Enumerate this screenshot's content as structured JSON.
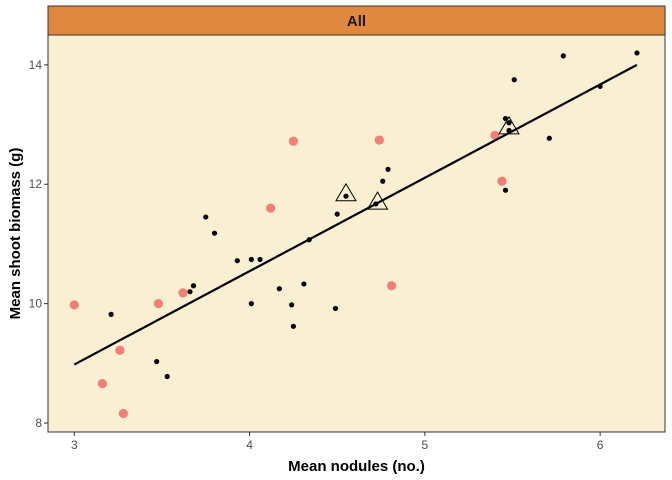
{
  "chart_data": {
    "type": "scatter",
    "facet_label": "All",
    "xlabel": "Mean nodules (no.)",
    "ylabel": "Mean shoot biomass (g)",
    "xlim": [
      2.85,
      6.37
    ],
    "ylim": [
      7.85,
      14.5
    ],
    "x_ticks": [
      3,
      4,
      5,
      6
    ],
    "y_ticks": [
      8,
      10,
      12,
      14
    ],
    "grid": false,
    "colors": {
      "panel_background": "#faeed3",
      "strip_background": "#e0883f",
      "highlight_points": "#f07f76",
      "points": "#000000",
      "fit_line": "#000000",
      "panel_border": "#333333"
    },
    "series": [
      {
        "style": "small-black-dot",
        "points": [
          [
            3.21,
            9.82
          ],
          [
            3.47,
            9.03
          ],
          [
            3.53,
            8.78
          ],
          [
            3.66,
            10.2
          ],
          [
            3.68,
            10.3
          ],
          [
            3.75,
            11.45
          ],
          [
            3.8,
            11.18
          ],
          [
            3.93,
            10.72
          ],
          [
            4.01,
            10.74
          ],
          [
            4.01,
            10.0
          ],
          [
            4.06,
            10.74
          ],
          [
            4.17,
            10.25
          ],
          [
            4.24,
            9.98
          ],
          [
            4.25,
            9.62
          ],
          [
            4.31,
            10.33
          ],
          [
            4.34,
            11.07
          ],
          [
            4.49,
            9.92
          ],
          [
            4.5,
            11.5
          ],
          [
            4.55,
            11.8
          ],
          [
            4.72,
            11.67
          ],
          [
            4.76,
            12.05
          ],
          [
            4.79,
            12.25
          ],
          [
            5.46,
            13.1
          ],
          [
            5.46,
            11.9
          ],
          [
            5.48,
            13.03
          ],
          [
            5.48,
            12.9
          ],
          [
            5.51,
            13.75
          ],
          [
            5.71,
            12.77
          ],
          [
            5.79,
            14.15
          ],
          [
            6.0,
            13.64
          ],
          [
            6.21,
            14.2
          ]
        ]
      },
      {
        "style": "large-salmon-dot",
        "points": [
          [
            3.0,
            9.98
          ],
          [
            3.16,
            8.66
          ],
          [
            3.26,
            9.22
          ],
          [
            3.28,
            8.16
          ],
          [
            3.48,
            10.0
          ],
          [
            3.62,
            10.18
          ],
          [
            4.12,
            11.6
          ],
          [
            4.25,
            12.72
          ],
          [
            4.74,
            12.74
          ],
          [
            4.81,
            10.3
          ],
          [
            5.4,
            12.82
          ],
          [
            5.44,
            12.05
          ]
        ]
      },
      {
        "style": "open-triangle",
        "points": [
          [
            4.55,
            11.84
          ],
          [
            4.73,
            11.7
          ],
          [
            5.48,
            12.96
          ]
        ]
      }
    ],
    "fit_line": {
      "x": [
        3.0,
        6.21
      ],
      "y": [
        8.98,
        14.0
      ]
    }
  }
}
